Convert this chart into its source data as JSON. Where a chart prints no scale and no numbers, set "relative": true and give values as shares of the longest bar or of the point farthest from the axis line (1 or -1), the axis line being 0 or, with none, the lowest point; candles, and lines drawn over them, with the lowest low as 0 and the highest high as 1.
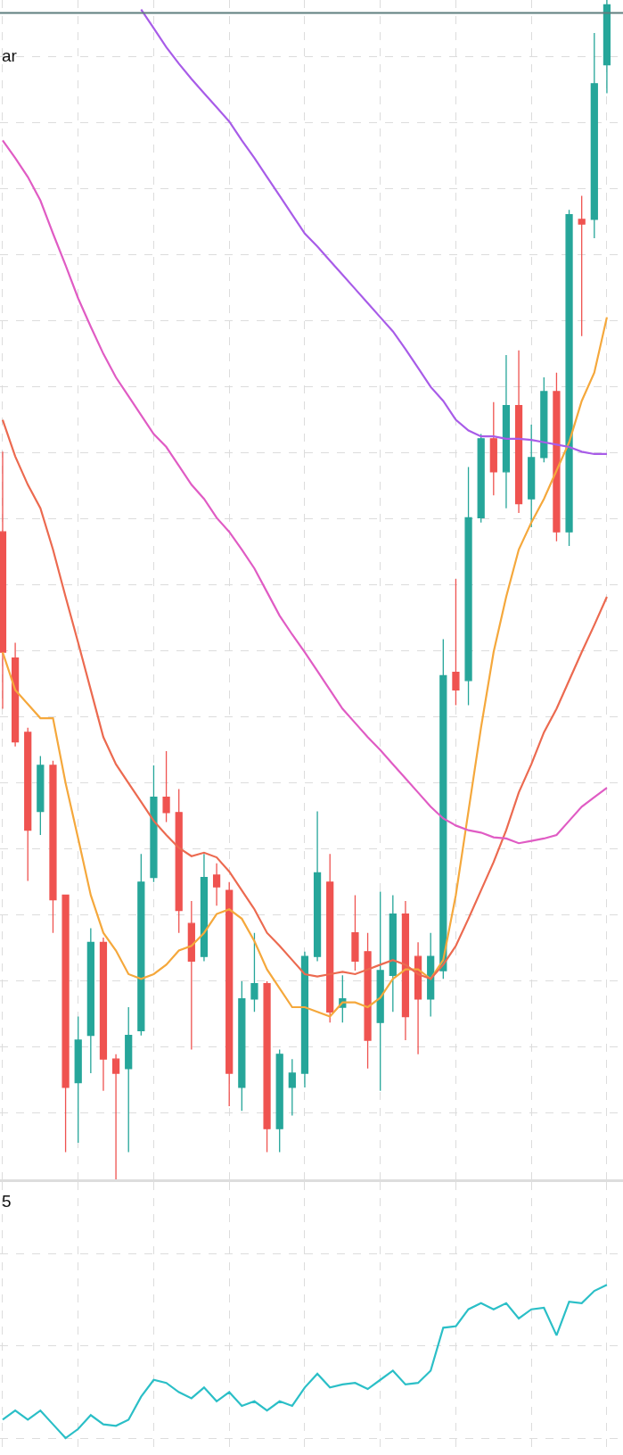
{
  "chart_data": [
    {
      "type": "candlestick",
      "relative": true,
      "grid": true,
      "tick_labels": false,
      "annotations": [
        "ar"
      ],
      "categories": [
        null,
        null,
        null,
        null,
        null,
        null,
        null,
        null,
        null,
        null,
        null,
        null,
        null,
        null,
        null,
        null,
        null,
        null,
        null,
        null,
        null,
        null,
        null,
        null,
        null,
        null,
        null,
        null,
        null,
        null,
        null,
        null,
        null,
        null,
        null,
        null,
        null,
        null,
        null,
        null,
        null,
        null,
        null,
        null,
        null,
        null,
        null,
        null,
        null
      ],
      "ohlc": [
        [
          0.549,
          0.617,
          0.399,
          0.447
        ],
        [
          0.442,
          0.455,
          0.367,
          0.371
        ],
        [
          0.379,
          0.383,
          0.253,
          0.296
        ],
        [
          0.312,
          0.359,
          0.292,
          0.351
        ],
        [
          0.351,
          0.355,
          0.209,
          0.237
        ],
        [
          0.241,
          0.241,
          0.023,
          0.078
        ],
        [
          0.082,
          0.138,
          0.031,
          0.118
        ],
        [
          0.122,
          0.213,
          0.09,
          0.201
        ],
        [
          0.201,
          0.205,
          0.075,
          0.102
        ],
        [
          0.102,
          0.106,
          0,
          0.09
        ],
        [
          0.094,
          0.146,
          0.023,
          0.122
        ],
        [
          0.126,
          0.276,
          0.122,
          0.252
        ],
        [
          0.256,
          0.351,
          0.252,
          0.324
        ],
        [
          0.324,
          0.363,
          0.303,
          0.311
        ],
        [
          0.311,
          0.331,
          0.209,
          0.228
        ],
        [
          0.217,
          0.236,
          0.11,
          0.185
        ],
        [
          0.189,
          0.276,
          0.185,
          0.256
        ],
        [
          0.258,
          0.268,
          0.232,
          0.248
        ],
        [
          0.245,
          0.252,
          0.062,
          0.09
        ],
        [
          0.078,
          0.168,
          0.058,
          0.153
        ],
        [
          0.153,
          0.209,
          0.142,
          0.166
        ],
        [
          0.166,
          0.168,
          0.023,
          0.043
        ],
        [
          0.043,
          0.11,
          0.023,
          0.106
        ],
        [
          0.078,
          0.102,
          0.054,
          0.09
        ],
        [
          0.09,
          0.193,
          0.078,
          0.189
        ],
        [
          0.189,
          0.312,
          0.185,
          0.26
        ],
        [
          0.252,
          0.276,
          0.133,
          0.142
        ],
        [
          0.146,
          0.173,
          0.133,
          0.153
        ],
        [
          0.209,
          0.241,
          0.177,
          0.185
        ],
        [
          0.193,
          0.209,
          0.094,
          0.118
        ],
        [
          0.133,
          0.244,
          0.075,
          0.177
        ],
        [
          0.173,
          0.241,
          0.142,
          0.225
        ],
        [
          0.225,
          0.236,
          0.118,
          0.138
        ],
        [
          0.189,
          0.201,
          0.106,
          0.153
        ],
        [
          0.153,
          0.209,
          0.138,
          0.189
        ],
        [
          0.177,
          0.458,
          0.17,
          0.427
        ],
        [
          0.43,
          0.509,
          0.402,
          0.415
        ],
        [
          0.423,
          0.604,
          0.402,
          0.561
        ],
        [
          0.561,
          0.632,
          0.557,
          0.628
        ],
        [
          0.628,
          0.659,
          0.58,
          0.6
        ],
        [
          0.6,
          0.699,
          0.569,
          0.656
        ],
        [
          0.656,
          0.703,
          0.565,
          0.573
        ],
        [
          0.577,
          0.64,
          0.553,
          0.612
        ],
        [
          0.612,
          0.68,
          0.608,
          0.668
        ],
        [
          0.668,
          0.684,
          0.541,
          0.549
        ],
        [
          0.549,
          0.822,
          0.537,
          0.818
        ],
        [
          0.814,
          0.834,
          0.715,
          0.81
        ],
        [
          0.814,
          0.972,
          0.798,
          0.929
        ],
        [
          0.945,
          1,
          0.921,
          0.996
        ]
      ],
      "colors": [
        "#ef5350",
        "#ef5350",
        "#ef5350",
        "#26a69a",
        "#ef5350",
        "#ef5350",
        "#26a69a",
        "#26a69a",
        "#ef5350",
        "#ef5350",
        "#26a69a",
        "#26a69a",
        "#26a69a",
        "#ef5350",
        "#ef5350",
        "#ef5350",
        "#26a69a",
        "#ef5350",
        "#ef5350",
        "#26a69a",
        "#26a69a",
        "#ef5350",
        "#26a69a",
        "#26a69a",
        "#26a69a",
        "#26a69a",
        "#ef5350",
        "#26a69a",
        "#ef5350",
        "#ef5350",
        "#26a69a",
        "#26a69a",
        "#ef5350",
        "#ef5350",
        "#26a69a",
        "#26a69a",
        "#ef5350",
        "#26a69a",
        "#26a69a",
        "#ef5350",
        "#26a69a",
        "#ef5350",
        "#26a69a",
        "#26a69a",
        "#ef5350",
        "#26a69a",
        "#ef5350",
        "#26a69a",
        "#26a69a"
      ],
      "series": [
        {
          "type": "line",
          "color": "#f5a83c",
          "values": [
            0.447,
            0.415,
            0.403,
            0.391,
            0.391,
            0.336,
            0.289,
            0.241,
            0.209,
            0.194,
            0.174,
            0.17,
            0.174,
            0.182,
            0.194,
            0.198,
            0.209,
            0.225,
            0.229,
            0.221,
            0.202,
            0.178,
            0.162,
            0.146,
            0.146,
            0.142,
            0.138,
            0.15,
            0.15,
            0.146,
            0.154,
            0.17,
            0.178,
            0.178,
            0.17,
            0.186,
            0.241,
            0.312,
            0.383,
            0.447,
            0.494,
            0.534,
            0.557,
            0.577,
            0.601,
            0.625,
            0.66,
            0.684,
            0.731
          ]
        },
        {
          "type": "line",
          "color": "#ec6a50",
          "values": [
            0.644,
            0.613,
            0.589,
            0.569,
            0.534,
            0.494,
            0.455,
            0.415,
            0.375,
            0.352,
            0.336,
            0.32,
            0.304,
            0.292,
            0.281,
            0.274,
            0.277,
            0.273,
            0.261,
            0.245,
            0.229,
            0.209,
            0.198,
            0.186,
            0.174,
            0.172,
            0.174,
            0.176,
            0.174,
            0.178,
            0.182,
            0.186,
            0.182,
            0.174,
            0.17,
            0.182,
            0.198,
            0.221,
            0.245,
            0.269,
            0.296,
            0.328,
            0.352,
            0.379,
            0.399,
            0.423,
            0.447,
            0.47,
            0.494
          ]
        },
        {
          "type": "line",
          "color": "#e05cc4",
          "values": [
            0.881,
            0.866,
            0.85,
            0.83,
            0.802,
            0.775,
            0.747,
            0.723,
            0.7,
            0.68,
            0.664,
            0.648,
            0.632,
            0.621,
            0.605,
            0.589,
            0.577,
            0.561,
            0.549,
            0.534,
            0.518,
            0.498,
            0.478,
            0.462,
            0.447,
            0.431,
            0.415,
            0.399,
            0.387,
            0.375,
            0.364,
            0.352,
            0.34,
            0.328,
            0.316,
            0.306,
            0.3,
            0.296,
            0.294,
            0.29,
            0.289,
            0.285,
            0.287,
            0.289,
            0.292,
            0.304,
            0.316,
            0.324,
            0.332
          ]
        },
        {
          "type": "line",
          "color": "#a85ce8",
          "values": [
            null,
            null,
            null,
            null,
            null,
            null,
            null,
            null,
            null,
            null,
            null,
            0.992,
            0.976,
            0.96,
            0.946,
            0.933,
            0.921,
            0.909,
            0.897,
            0.881,
            0.866,
            0.85,
            0.834,
            0.818,
            0.802,
            0.791,
            0.779,
            0.767,
            0.755,
            0.743,
            0.731,
            0.719,
            0.704,
            0.688,
            0.672,
            0.66,
            0.644,
            0.635,
            0.63,
            0.63,
            0.628,
            0.628,
            0.627,
            0.625,
            0.623,
            0.621,
            0.617,
            0.615,
            0.615
          ]
        }
      ],
      "ref_lines": [
        {
          "axis": "y",
          "value": 0.989,
          "color": "#5f7f7f"
        }
      ]
    },
    {
      "type": "line",
      "relative": true,
      "grid": true,
      "tick_labels": false,
      "annotations": [
        "5"
      ],
      "categories": [
        null,
        null,
        null,
        null,
        null,
        null,
        null,
        null,
        null,
        null,
        null,
        null,
        null,
        null,
        null,
        null,
        null,
        null,
        null,
        null,
        null,
        null,
        null,
        null,
        null,
        null,
        null,
        null,
        null,
        null,
        null,
        null,
        null,
        null,
        null,
        null,
        null,
        null,
        null,
        null,
        null,
        null,
        null,
        null,
        null,
        null,
        null,
        null,
        null
      ],
      "series": [
        {
          "color": "#2bbfc7",
          "values": [
            0.12,
            0.18,
            0.12,
            0.18,
            0.09,
            0,
            0.06,
            0.15,
            0.09,
            0.08,
            0.12,
            0.27,
            0.38,
            0.36,
            0.3,
            0.26,
            0.33,
            0.24,
            0.3,
            0.21,
            0.24,
            0.18,
            0.24,
            0.21,
            0.33,
            0.42,
            0.33,
            0.35,
            0.36,
            0.32,
            0.38,
            0.44,
            0.35,
            0.36,
            0.44,
            0.72,
            0.73,
            0.84,
            0.88,
            0.84,
            0.88,
            0.78,
            0.84,
            0.85,
            0.67,
            0.89,
            0.88,
            0.96,
            1
          ]
        }
      ]
    }
  ]
}
